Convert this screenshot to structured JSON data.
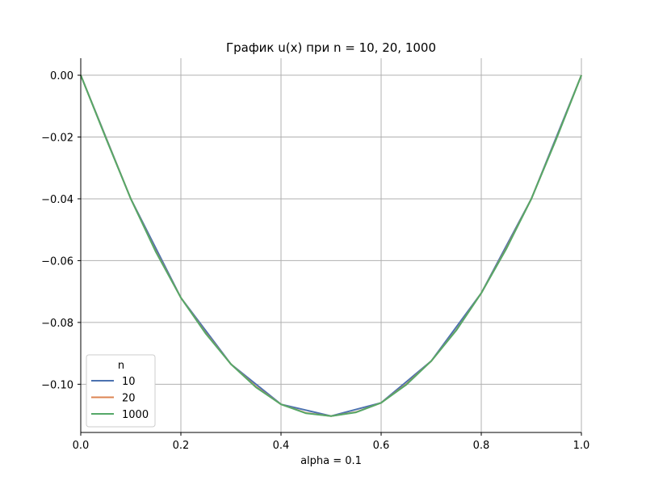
{
  "chart_data": {
    "type": "line",
    "title": "График u(x) при n = 10, 20, 1000",
    "xlabel": "alpha = 0.1",
    "ylabel": "",
    "xlim": [
      0.0,
      1.0
    ],
    "ylim": [
      -0.1156,
      0.0055
    ],
    "xticks": [
      0.0,
      0.2,
      0.4,
      0.6,
      0.8,
      1.0
    ],
    "xtick_labels": [
      "0.0",
      "0.2",
      "0.4",
      "0.6",
      "0.8",
      "1.0"
    ],
    "yticks": [
      0.0,
      -0.02,
      -0.04,
      -0.06,
      -0.08,
      -0.1
    ],
    "ytick_labels": [
      "0.00",
      "−0.02",
      "−0.04",
      "−0.06",
      "−0.08",
      "−0.10"
    ],
    "grid": true,
    "legend": {
      "title": "n",
      "location": "lower-left"
    },
    "series": [
      {
        "name": "10",
        "color": "#4c72b0",
        "x": [
          0.0,
          0.1,
          0.2,
          0.3,
          0.4,
          0.5,
          0.6,
          0.7,
          0.8,
          0.9,
          1.0
        ],
        "y": [
          0.0,
          -0.04,
          -0.072,
          -0.0935,
          -0.1065,
          -0.1103,
          -0.106,
          -0.0925,
          -0.0705,
          -0.04,
          0.0
        ]
      },
      {
        "name": "20",
        "color": "#dd8452",
        "x": [
          0.0,
          0.05,
          0.1,
          0.15,
          0.2,
          0.25,
          0.3,
          0.35,
          0.4,
          0.45,
          0.5,
          0.55,
          0.6,
          0.65,
          0.7,
          0.75,
          0.8,
          0.85,
          0.9,
          0.95,
          1.0
        ],
        "y": [
          0.0,
          -0.0202,
          -0.04,
          -0.057,
          -0.072,
          -0.0835,
          -0.0935,
          -0.1008,
          -0.1065,
          -0.1093,
          -0.1103,
          -0.109,
          -0.106,
          -0.1,
          -0.0925,
          -0.0825,
          -0.0705,
          -0.056,
          -0.04,
          -0.0205,
          0.0
        ]
      },
      {
        "name": "1000",
        "color": "#55a868",
        "x": [
          0.0,
          0.05,
          0.1,
          0.15,
          0.2,
          0.25,
          0.3,
          0.35,
          0.4,
          0.45,
          0.5,
          0.55,
          0.6,
          0.65,
          0.7,
          0.75,
          0.8,
          0.85,
          0.9,
          0.95,
          1.0
        ],
        "y": [
          0.0,
          -0.0203,
          -0.04,
          -0.0572,
          -0.072,
          -0.0837,
          -0.0935,
          -0.101,
          -0.1065,
          -0.1094,
          -0.1103,
          -0.1091,
          -0.106,
          -0.1002,
          -0.0925,
          -0.0826,
          -0.0705,
          -0.0562,
          -0.04,
          -0.0206,
          0.0
        ]
      }
    ]
  }
}
